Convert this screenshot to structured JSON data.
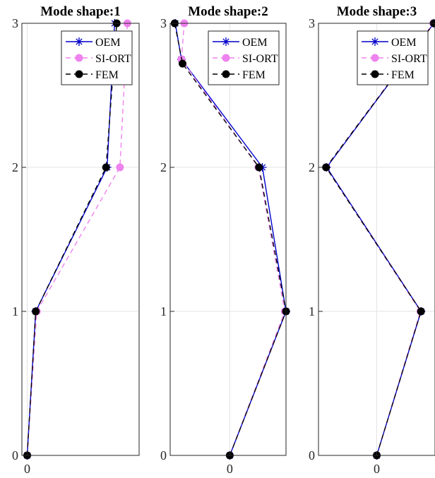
{
  "chart_data": [
    {
      "type": "line",
      "title": "Mode shape:1",
      "orientation": "vertical-profile",
      "y_ticks": [
        "0",
        "1",
        "2",
        "3"
      ],
      "x_ticks": [
        "0"
      ],
      "ylim": [
        0,
        3
      ],
      "xlim": [
        -0.05,
        1.05
      ],
      "grid": true,
      "legend_position": "top-right",
      "series": [
        {
          "name": "OEM",
          "color": "#0000cc",
          "dash": "solid",
          "marker": "star",
          "points": [
            [
              0,
              0
            ],
            [
              0.08,
              1
            ],
            [
              0.75,
              2
            ],
            [
              0.82,
              3
            ]
          ]
        },
        {
          "name": "SI-ORT",
          "color": "#ee82ee",
          "dash": "dashed",
          "marker": "circle",
          "points": [
            [
              0,
              0
            ],
            [
              0.09,
              1
            ],
            [
              0.87,
              2
            ],
            [
              0.94,
              3
            ]
          ]
        },
        {
          "name": "FEM",
          "color": "#000000",
          "dash": "dashed",
          "marker": "dot",
          "points": [
            [
              0,
              0
            ],
            [
              0.08,
              1
            ],
            [
              0.74,
              2
            ],
            [
              0.84,
              3
            ]
          ]
        }
      ]
    },
    {
      "type": "line",
      "title": "Mode shape:2",
      "orientation": "vertical-profile",
      "y_ticks": [
        "0",
        "1",
        "2",
        "3"
      ],
      "x_ticks": [
        "0"
      ],
      "ylim": [
        0,
        3
      ],
      "xlim": [
        -1.06,
        1.0
      ],
      "grid": true,
      "legend_position": "top-right",
      "series": [
        {
          "name": "OEM",
          "color": "#0000cc",
          "dash": "solid",
          "marker": "star",
          "points": [
            [
              0,
              0
            ],
            [
              1.0,
              1
            ],
            [
              0.58,
              2
            ],
            [
              -0.86,
              2.75
            ],
            [
              -0.97,
              3
            ]
          ]
        },
        {
          "name": "SI-ORT",
          "color": "#ee82ee",
          "dash": "dashed",
          "marker": "circle",
          "points": [
            [
              0,
              0
            ],
            [
              0.98,
              1
            ],
            [
              0.51,
              2
            ],
            [
              -0.86,
              2.75
            ],
            [
              -0.81,
              3
            ]
          ]
        },
        {
          "name": "FEM",
          "color": "#000000",
          "dash": "dashed",
          "marker": "dot",
          "points": [
            [
              0,
              0
            ],
            [
              1.0,
              1
            ],
            [
              0.52,
              2
            ],
            [
              -0.84,
              2.72
            ],
            [
              -0.98,
              3
            ]
          ]
        }
      ]
    },
    {
      "type": "line",
      "title": "Mode shape:3",
      "orientation": "vertical-profile",
      "y_ticks": [
        "0",
        "1",
        "2",
        "3"
      ],
      "x_ticks": [
        "0"
      ],
      "ylim": [
        0,
        3
      ],
      "xlim": [
        -1.0,
        1.0
      ],
      "grid": true,
      "legend_position": "top-right",
      "series": [
        {
          "name": "OEM",
          "color": "#0000cc",
          "dash": "solid",
          "marker": "star",
          "points": [
            [
              0,
              0
            ],
            [
              0.76,
              1
            ],
            [
              -0.86,
              2
            ],
            [
              0.98,
              3
            ]
          ]
        },
        {
          "name": "SI-ORT",
          "color": "#ee82ee",
          "dash": "dashed",
          "marker": "circle",
          "points": [
            [
              0,
              0
            ],
            [
              0.75,
              1
            ],
            [
              -0.87,
              2
            ],
            [
              0.97,
              3
            ]
          ]
        },
        {
          "name": "FEM",
          "color": "#000000",
          "dash": "dashed",
          "marker": "dot",
          "points": [
            [
              0,
              0
            ],
            [
              0.76,
              1
            ],
            [
              -0.87,
              2
            ],
            [
              0.98,
              3
            ]
          ]
        }
      ]
    }
  ]
}
